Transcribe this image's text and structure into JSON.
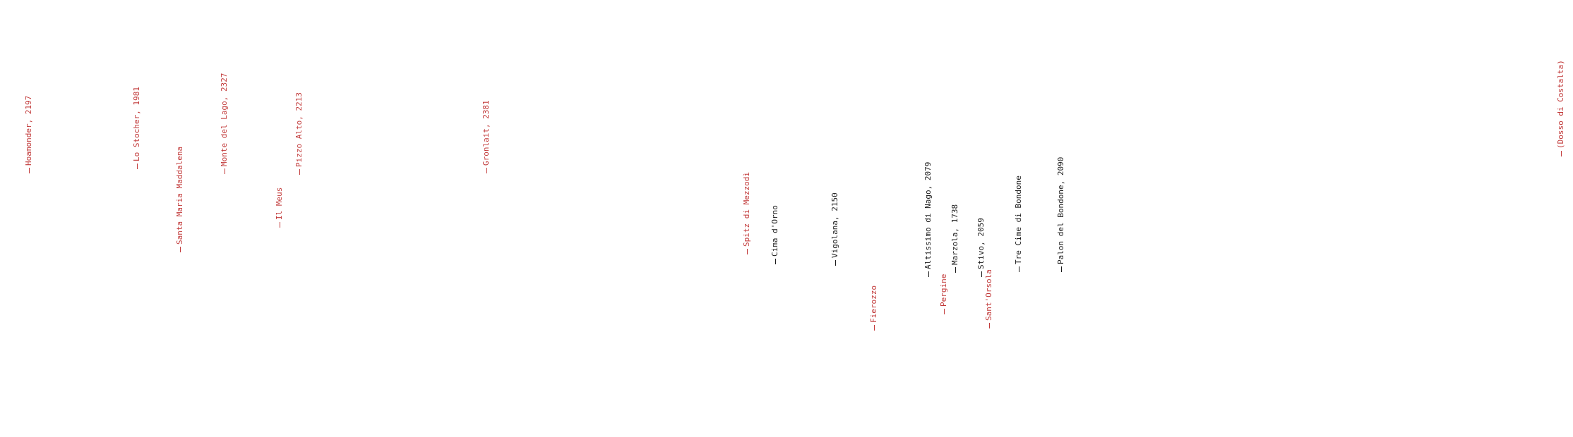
{
  "colors": {
    "red": "#c23a3a",
    "black": "#1a1a1a",
    "background": "#ffffff"
  },
  "labels": [
    {
      "text": "Hoamonder, 2197",
      "color": "red"
    },
    {
      "text": "Lo Stocher, 1981",
      "color": "red"
    },
    {
      "text": "Santa Maria Maddalena",
      "color": "red"
    },
    {
      "text": "Monte del Lago, 2327",
      "color": "red"
    },
    {
      "text": "Il Meus",
      "color": "red"
    },
    {
      "text": "Pizzo Alto, 2213",
      "color": "red"
    },
    {
      "text": "Gronlait, 2381",
      "color": "red"
    },
    {
      "text": "Spitz di Mezzodì",
      "color": "red"
    },
    {
      "text": "Cima d'Orno",
      "color": "black"
    },
    {
      "text": "Vigolana, 2150",
      "color": "black"
    },
    {
      "text": "Fierozzo",
      "color": "red"
    },
    {
      "text": "Altissimo di Nago, 2079",
      "color": "black"
    },
    {
      "text": "Pergine",
      "color": "red"
    },
    {
      "text": "Marzola, 1738",
      "color": "black"
    },
    {
      "text": "Stivo, 2059",
      "color": "black"
    },
    {
      "text": "Sant'Orsola",
      "color": "red"
    },
    {
      "text": "Tre Cime di Bondone",
      "color": "black"
    },
    {
      "text": "Palon del Bondone, 2090",
      "color": "black"
    },
    {
      "text": "(Dosso di Costalta)",
      "color": "red"
    }
  ]
}
